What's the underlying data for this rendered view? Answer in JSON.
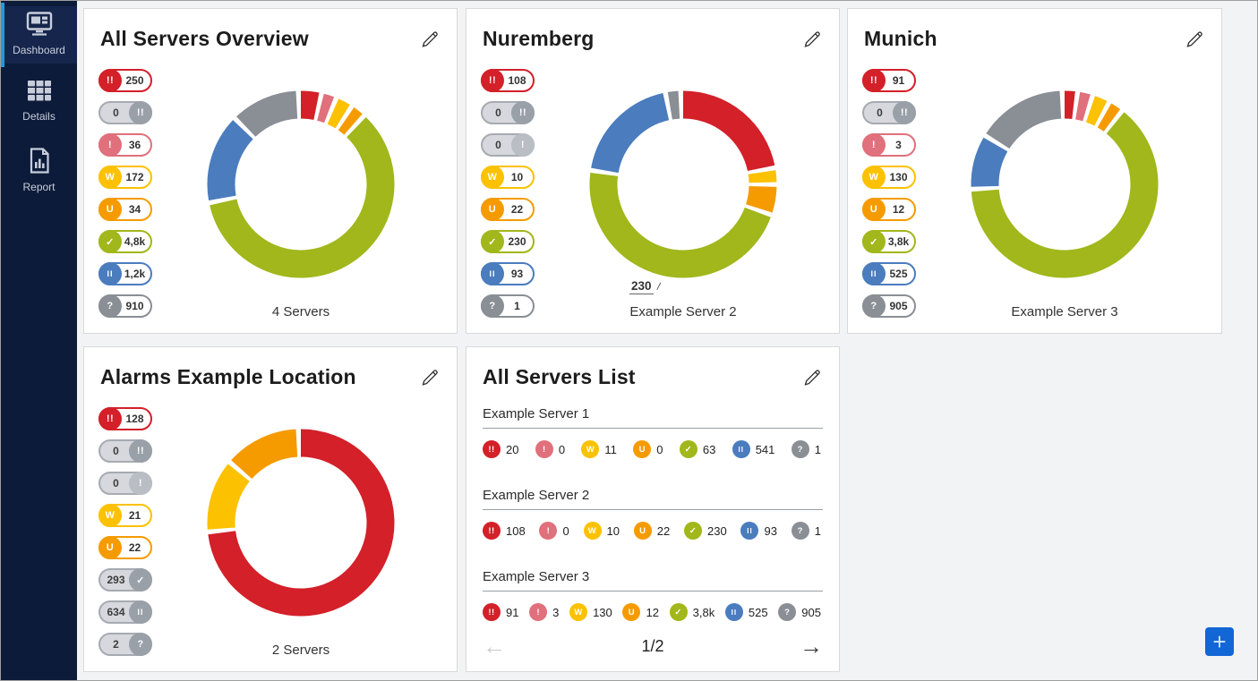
{
  "colors": {
    "alarm": "#d32029",
    "alarm-ack": "#9aa0a8",
    "partial": "#e0707c",
    "warning": "#fcc100",
    "unusual": "#f59b00",
    "up": "#a1b71b",
    "paused": "#4a7cbe",
    "unknown": "#8a8e95",
    "sidebar_bg": "#0d1b3a",
    "sidebar_accent": "#1f9cd9",
    "fab_blue": "#1266d6"
  },
  "sidebar": {
    "items": [
      {
        "label": "Dashboard",
        "icon": "dashboard-icon",
        "active": true
      },
      {
        "label": "Details",
        "icon": "grid-icon",
        "active": false
      },
      {
        "label": "Report",
        "icon": "report-icon",
        "active": false
      }
    ]
  },
  "panels": [
    {
      "title": "All Servers Overview",
      "caption": "4 Servers",
      "badges": [
        {
          "status": "alarm",
          "icon": "double-exclamation-icon",
          "count": "250",
          "active": true
        },
        {
          "status": "alarm-ack",
          "icon": "double-exclamation-icon",
          "count": "0",
          "active": false
        },
        {
          "status": "partial",
          "icon": "exclamation-icon",
          "count": "36",
          "active": true
        },
        {
          "status": "warning",
          "icon": "warning-w-icon",
          "count": "172",
          "active": true
        },
        {
          "status": "unusual",
          "icon": "unusual-u-icon",
          "count": "34",
          "active": true
        },
        {
          "status": "up",
          "icon": "check-icon",
          "count": "4,8k",
          "active": true
        },
        {
          "status": "paused",
          "icon": "pause-icon",
          "count": "1,2k",
          "active": true
        },
        {
          "status": "unknown",
          "icon": "question-icon",
          "count": "910",
          "active": true
        }
      ]
    },
    {
      "title": "Nuremberg",
      "caption": "Example Server 2",
      "annotation": {
        "text": "230"
      },
      "badges": [
        {
          "status": "alarm",
          "icon": "double-exclamation-icon",
          "count": "108",
          "active": true
        },
        {
          "status": "alarm-ack",
          "icon": "double-exclamation-icon",
          "count": "0",
          "active": false
        },
        {
          "status": "partial",
          "icon": "exclamation-icon",
          "count": "0",
          "active": false
        },
        {
          "status": "warning",
          "icon": "warning-w-icon",
          "count": "10",
          "active": true
        },
        {
          "status": "unusual",
          "icon": "unusual-u-icon",
          "count": "22",
          "active": true
        },
        {
          "status": "up",
          "icon": "check-icon",
          "count": "230",
          "active": true
        },
        {
          "status": "paused",
          "icon": "pause-icon",
          "count": "93",
          "active": true
        },
        {
          "status": "unknown",
          "icon": "question-icon",
          "count": "1",
          "active": true
        }
      ]
    },
    {
      "title": "Munich",
      "caption": "Example Server 3",
      "badges": [
        {
          "status": "alarm",
          "icon": "double-exclamation-icon",
          "count": "91",
          "active": true
        },
        {
          "status": "alarm-ack",
          "icon": "double-exclamation-icon",
          "count": "0",
          "active": false
        },
        {
          "status": "partial",
          "icon": "exclamation-icon",
          "count": "3",
          "active": true
        },
        {
          "status": "warning",
          "icon": "warning-w-icon",
          "count": "130",
          "active": true
        },
        {
          "status": "unusual",
          "icon": "unusual-u-icon",
          "count": "12",
          "active": true
        },
        {
          "status": "up",
          "icon": "check-icon",
          "count": "3,8k",
          "active": true
        },
        {
          "status": "paused",
          "icon": "pause-icon",
          "count": "525",
          "active": true
        },
        {
          "status": "unknown",
          "icon": "question-icon",
          "count": "905",
          "active": true
        }
      ]
    },
    {
      "title": "Alarms Example Location",
      "caption": "2 Servers",
      "badges": [
        {
          "status": "alarm",
          "icon": "double-exclamation-icon",
          "count": "128",
          "active": true
        },
        {
          "status": "alarm-ack",
          "icon": "double-exclamation-icon",
          "count": "0",
          "active": false
        },
        {
          "status": "partial",
          "icon": "exclamation-icon",
          "count": "0",
          "active": false
        },
        {
          "status": "warning",
          "icon": "warning-w-icon",
          "count": "21",
          "active": true
        },
        {
          "status": "unusual",
          "icon": "unusual-u-icon",
          "count": "22",
          "active": true
        },
        {
          "status": "up",
          "icon": "check-icon",
          "count": "293",
          "active": false
        },
        {
          "status": "paused",
          "icon": "pause-icon",
          "count": "634",
          "active": false
        },
        {
          "status": "unknown",
          "icon": "question-icon",
          "count": "2",
          "active": false
        }
      ]
    }
  ],
  "chart_data": [
    {
      "type": "donut",
      "title": "All Servers Overview",
      "caption": "4 Servers",
      "segments": [
        {
          "label": "alarm",
          "value": 250,
          "color": "#d32029"
        },
        {
          "label": "partial",
          "value": 36,
          "color": "#e0707c"
        },
        {
          "label": "warning",
          "value": 172,
          "color": "#fcc100"
        },
        {
          "label": "unusual",
          "value": 34,
          "color": "#f59b00"
        },
        {
          "label": "up",
          "value": 4800,
          "color": "#a1b71b"
        },
        {
          "label": "paused",
          "value": 1200,
          "color": "#4a7cbe"
        },
        {
          "label": "unknown",
          "value": 910,
          "color": "#8a8e95"
        }
      ]
    },
    {
      "type": "donut",
      "title": "Nuremberg",
      "caption": "Example Server 2",
      "annotation_value": "230",
      "segments": [
        {
          "label": "alarm",
          "value": 108,
          "color": "#d32029"
        },
        {
          "label": "warning",
          "value": 10,
          "color": "#fcc100"
        },
        {
          "label": "unusual",
          "value": 22,
          "color": "#f59b00"
        },
        {
          "label": "up",
          "value": 230,
          "color": "#a1b71b"
        },
        {
          "label": "paused",
          "value": 93,
          "color": "#4a7cbe"
        },
        {
          "label": "unknown",
          "value": 1,
          "color": "#8a8e95"
        }
      ]
    },
    {
      "type": "donut",
      "title": "Munich",
      "caption": "Example Server 3",
      "segments": [
        {
          "label": "alarm",
          "value": 91,
          "color": "#d32029"
        },
        {
          "label": "partial",
          "value": 3,
          "color": "#e0707c"
        },
        {
          "label": "warning",
          "value": 130,
          "color": "#fcc100"
        },
        {
          "label": "unusual",
          "value": 12,
          "color": "#f59b00"
        },
        {
          "label": "up",
          "value": 3800,
          "color": "#a1b71b"
        },
        {
          "label": "paused",
          "value": 525,
          "color": "#4a7cbe"
        },
        {
          "label": "unknown",
          "value": 905,
          "color": "#8a8e95"
        }
      ]
    },
    {
      "type": "donut",
      "title": "Alarms Example Location",
      "caption": "2 Servers",
      "segments": [
        {
          "label": "alarm",
          "value": 128,
          "color": "#d32029"
        },
        {
          "label": "warning",
          "value": 21,
          "color": "#fcc100"
        },
        {
          "label": "unusual",
          "value": 22,
          "color": "#f59b00"
        }
      ]
    }
  ],
  "list_panel": {
    "title": "All Servers List",
    "servers": [
      {
        "name": "Example Server 1",
        "counts": [
          {
            "status": "alarm",
            "value": "20"
          },
          {
            "status": "partial",
            "value": "0"
          },
          {
            "status": "warning",
            "value": "11"
          },
          {
            "status": "unusual",
            "value": "0"
          },
          {
            "status": "up",
            "value": "63"
          },
          {
            "status": "paused",
            "value": "541"
          },
          {
            "status": "unknown",
            "value": "1"
          }
        ]
      },
      {
        "name": "Example Server 2",
        "counts": [
          {
            "status": "alarm",
            "value": "108"
          },
          {
            "status": "partial",
            "value": "0"
          },
          {
            "status": "warning",
            "value": "10"
          },
          {
            "status": "unusual",
            "value": "22"
          },
          {
            "status": "up",
            "value": "230"
          },
          {
            "status": "paused",
            "value": "93"
          },
          {
            "status": "unknown",
            "value": "1"
          }
        ]
      },
      {
        "name": "Example Server 3",
        "counts": [
          {
            "status": "alarm",
            "value": "91"
          },
          {
            "status": "partial",
            "value": "3"
          },
          {
            "status": "warning",
            "value": "130"
          },
          {
            "status": "unusual",
            "value": "12"
          },
          {
            "status": "up",
            "value": "3,8k"
          },
          {
            "status": "paused",
            "value": "525"
          },
          {
            "status": "unknown",
            "value": "905"
          }
        ]
      }
    ],
    "pagination": {
      "page_label": "1/2",
      "prev_enabled": false,
      "next_enabled": true
    }
  },
  "fab": {
    "icon": "plus-icon"
  }
}
